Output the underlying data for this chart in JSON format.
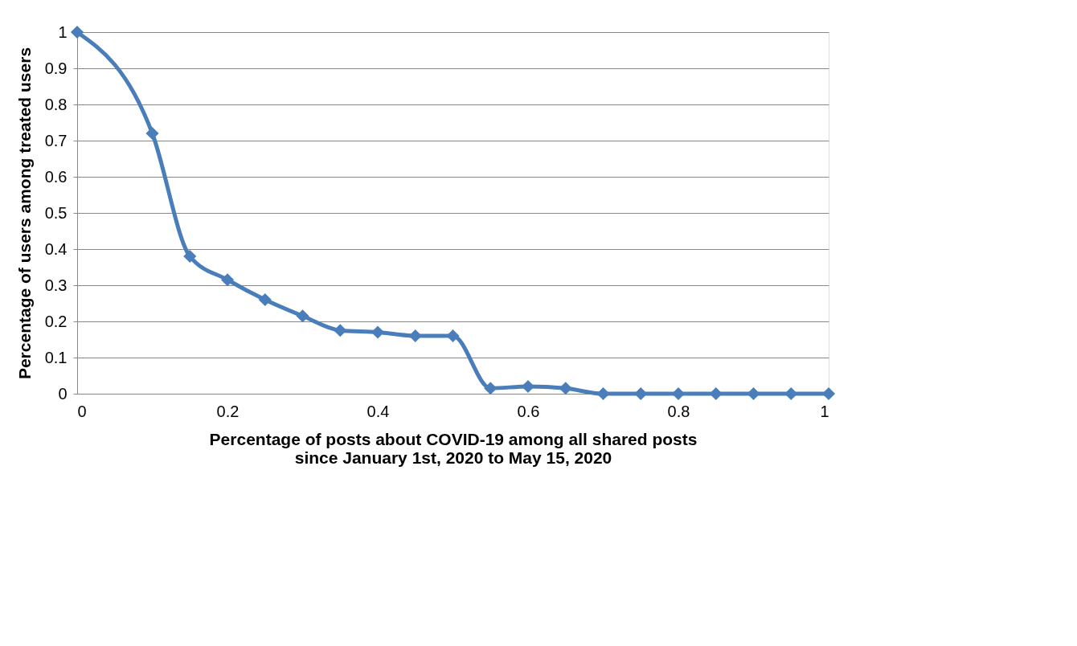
{
  "chart_data": {
    "type": "line",
    "xlabel": "Percentage of posts about COVID-19 among all shared posts since January 1st, 2020 to May 15, 2020",
    "ylabel": "Percentage of users among treated users",
    "x": [
      0,
      0.1,
      0.15,
      0.2,
      0.25,
      0.3,
      0.35,
      0.4,
      0.45,
      0.5,
      0.55,
      0.6,
      0.65,
      0.7,
      0.75,
      0.8,
      0.85,
      0.9,
      0.95,
      1
    ],
    "series": [
      {
        "color": "#4a7ebb",
        "values": [
          1,
          0.72,
          0.38,
          0.315,
          0.26,
          0.215,
          0.175,
          0.17,
          0.16,
          0.16,
          0.015,
          0.02,
          0.015,
          0,
          0,
          0,
          0,
          0,
          0,
          0
        ]
      }
    ],
    "xlim": [
      0,
      1
    ],
    "xticks": [
      0,
      0.2,
      0.4,
      0.6,
      0.8,
      1
    ],
    "ylim": [
      0,
      1
    ],
    "yticks": [
      0,
      0.1,
      0.2,
      0.3,
      0.4,
      0.5,
      0.6,
      0.7,
      0.8,
      0.9,
      1
    ],
    "grid": "y",
    "marker": "diamond",
    "line_style": "solid"
  }
}
